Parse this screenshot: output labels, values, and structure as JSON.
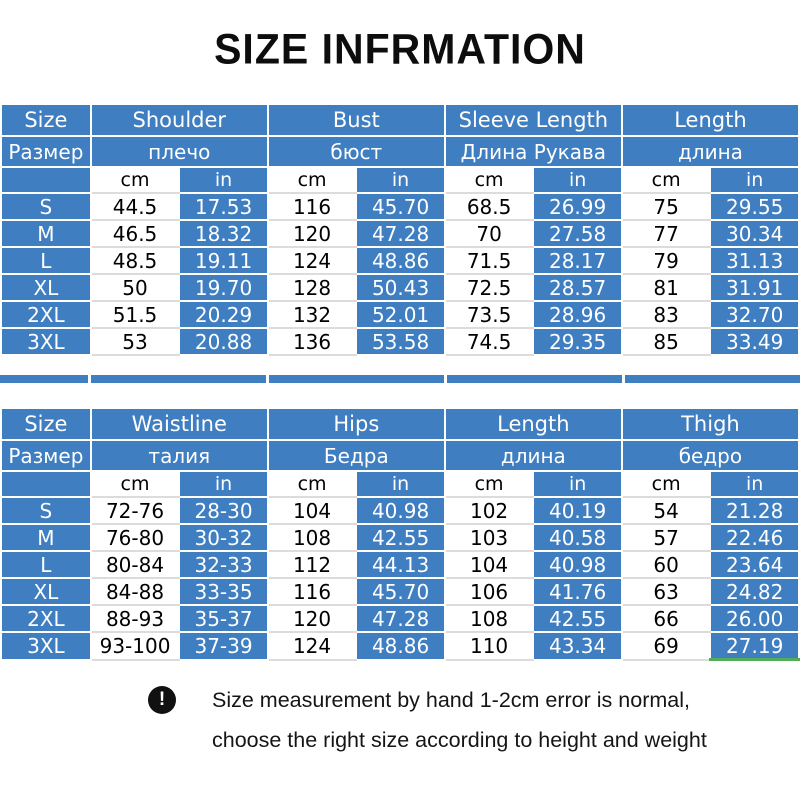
{
  "title": "SIZE INFRMATION",
  "colors": {
    "table_blue": "#3e7ec1",
    "cell_white": "#ffffff",
    "row_separator": "#dcdcdc",
    "green_accent": "#4fae57",
    "note_icon_bg": "#111111"
  },
  "units": {
    "cm": "cm",
    "in": "in"
  },
  "tables": [
    {
      "size_header": {
        "en": "Size",
        "ru": "Размер"
      },
      "columns": [
        {
          "en": "Shoulder",
          "ru": "плечо"
        },
        {
          "en": "Bust",
          "ru": "бюст"
        },
        {
          "en": "Sleeve Length",
          "ru": "Длина Рукава"
        },
        {
          "en": "Length",
          "ru": "длина"
        }
      ],
      "rows": [
        {
          "size": "S",
          "values": [
            "44.5",
            "17.53",
            "116",
            "45.70",
            "68.5",
            "26.99",
            "75",
            "29.55"
          ]
        },
        {
          "size": "M",
          "values": [
            "46.5",
            "18.32",
            "120",
            "47.28",
            "70",
            "27.58",
            "77",
            "30.34"
          ]
        },
        {
          "size": "L",
          "values": [
            "48.5",
            "19.11",
            "124",
            "48.86",
            "71.5",
            "28.17",
            "79",
            "31.13"
          ]
        },
        {
          "size": "XL",
          "values": [
            "50",
            "19.70",
            "128",
            "50.43",
            "72.5",
            "28.57",
            "81",
            "31.91"
          ]
        },
        {
          "size": "2XL",
          "values": [
            "51.5",
            "20.29",
            "132",
            "52.01",
            "73.5",
            "28.96",
            "83",
            "32.70"
          ]
        },
        {
          "size": "3XL",
          "values": [
            "53",
            "20.88",
            "136",
            "53.58",
            "74.5",
            "29.35",
            "85",
            "33.49"
          ]
        }
      ]
    },
    {
      "size_header": {
        "en": "Size",
        "ru": "Размер"
      },
      "columns": [
        {
          "en": "Waistline",
          "ru": "талия"
        },
        {
          "en": "Hips",
          "ru": "Бедра"
        },
        {
          "en": "Length",
          "ru": "длина"
        },
        {
          "en": "Thigh",
          "ru": "бедро"
        }
      ],
      "rows": [
        {
          "size": "S",
          "values": [
            "72-76",
            "28-30",
            "104",
            "40.98",
            "102",
            "40.19",
            "54",
            "21.28"
          ]
        },
        {
          "size": "M",
          "values": [
            "76-80",
            "30-32",
            "108",
            "42.55",
            "103",
            "40.58",
            "57",
            "22.46"
          ]
        },
        {
          "size": "L",
          "values": [
            "80-84",
            "32-33",
            "112",
            "44.13",
            "104",
            "40.98",
            "60",
            "23.64"
          ]
        },
        {
          "size": "XL",
          "values": [
            "84-88",
            "33-35",
            "116",
            "45.70",
            "106",
            "41.76",
            "63",
            "24.82"
          ]
        },
        {
          "size": "2XL",
          "values": [
            "88-93",
            "35-37",
            "120",
            "47.28",
            "108",
            "42.55",
            "66",
            "26.00"
          ]
        },
        {
          "size": "3XL",
          "values": [
            "93-100",
            "37-39",
            "124",
            "48.86",
            "110",
            "43.34",
            "69",
            "27.19"
          ]
        }
      ]
    }
  ],
  "note": {
    "icon": "exclamation-icon",
    "icon_glyph": "!",
    "line1": "Size measurement by hand 1-2cm error is normal,",
    "line2": "choose the right size according to height and weight"
  }
}
